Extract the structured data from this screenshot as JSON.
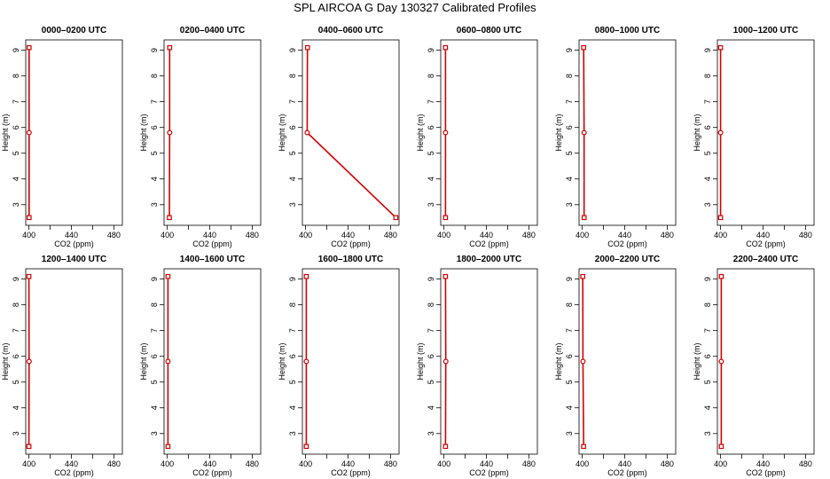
{
  "title": "SPL AIRCOA G  Day 130327  Calibrated Profiles",
  "colors": {
    "profile": "#d40000",
    "axis": "#000000"
  },
  "chart_data": [
    {
      "type": "line",
      "title": "0000–0200 UTC",
      "xlabel": "CO2 (ppm)",
      "ylabel": "Height (m)",
      "xlim": [
        397,
        488
      ],
      "ylim": [
        2.2,
        9.4
      ],
      "x_ticks": [
        400,
        420,
        440,
        460,
        480
      ],
      "x_tick_labels": [
        "400",
        "",
        "440",
        "",
        "480"
      ],
      "y_ticks": [
        3,
        4,
        5,
        6,
        7,
        8,
        9
      ],
      "grid": false,
      "series": [
        {
          "x": [
            400.2,
            400.2,
            400.2
          ],
          "y": [
            2.5,
            5.8,
            9.1
          ]
        }
      ]
    },
    {
      "type": "line",
      "title": "0200–0400 UTC",
      "xlabel": "CO2 (ppm)",
      "ylabel": "Height (m)",
      "xlim": [
        397,
        488
      ],
      "ylim": [
        2.2,
        9.4
      ],
      "x_ticks": [
        400,
        420,
        440,
        460,
        480
      ],
      "x_tick_labels": [
        "400",
        "",
        "440",
        "",
        "480"
      ],
      "y_ticks": [
        3,
        4,
        5,
        6,
        7,
        8,
        9
      ],
      "grid": false,
      "series": [
        {
          "x": [
            402.0,
            402.3,
            402.3
          ],
          "y": [
            2.5,
            5.8,
            9.1
          ]
        }
      ]
    },
    {
      "type": "line",
      "title": "0400–0600 UTC",
      "xlabel": "CO2 (ppm)",
      "ylabel": "Height (m)",
      "xlim": [
        397,
        488
      ],
      "ylim": [
        2.2,
        9.4
      ],
      "x_ticks": [
        400,
        420,
        440,
        460,
        480
      ],
      "x_tick_labels": [
        "400",
        "",
        "440",
        "",
        "480"
      ],
      "y_ticks": [
        3,
        4,
        5,
        6,
        7,
        8,
        9
      ],
      "grid": false,
      "series": [
        {
          "x": [
            485.0,
            401.5,
            401.8
          ],
          "y": [
            2.5,
            5.8,
            9.1
          ]
        }
      ]
    },
    {
      "type": "line",
      "title": "0600–0800 UTC",
      "xlabel": "CO2 (ppm)",
      "ylabel": "Height (m)",
      "xlim": [
        397,
        488
      ],
      "ylim": [
        2.2,
        9.4
      ],
      "x_ticks": [
        400,
        420,
        440,
        460,
        480
      ],
      "x_tick_labels": [
        "400",
        "",
        "440",
        "",
        "480"
      ],
      "y_ticks": [
        3,
        4,
        5,
        6,
        7,
        8,
        9
      ],
      "grid": false,
      "series": [
        {
          "x": [
            401.5,
            401.5,
            401.5
          ],
          "y": [
            2.5,
            5.8,
            9.1
          ]
        }
      ]
    },
    {
      "type": "line",
      "title": "0800–1000 UTC",
      "xlabel": "CO2 (ppm)",
      "ylabel": "Height (m)",
      "xlim": [
        397,
        488
      ],
      "ylim": [
        2.2,
        9.4
      ],
      "x_ticks": [
        400,
        420,
        440,
        460,
        480
      ],
      "x_tick_labels": [
        "400",
        "",
        "440",
        "",
        "480"
      ],
      "y_ticks": [
        3,
        4,
        5,
        6,
        7,
        8,
        9
      ],
      "grid": false,
      "series": [
        {
          "x": [
            401.8,
            401.8,
            401.3
          ],
          "y": [
            2.5,
            5.8,
            9.1
          ]
        }
      ]
    },
    {
      "type": "line",
      "title": "1000–1200 UTC",
      "xlabel": "CO2 (ppm)",
      "ylabel": "Height (m)",
      "xlim": [
        397,
        488
      ],
      "ylim": [
        2.2,
        9.4
      ],
      "x_ticks": [
        400,
        420,
        440,
        460,
        480
      ],
      "x_tick_labels": [
        "400",
        "",
        "440",
        "",
        "480"
      ],
      "y_ticks": [
        3,
        4,
        5,
        6,
        7,
        8,
        9
      ],
      "grid": false,
      "series": [
        {
          "x": [
            400.0,
            400.0,
            400.0
          ],
          "y": [
            2.5,
            5.8,
            9.1
          ]
        }
      ]
    },
    {
      "type": "line",
      "title": "1200–1400 UTC",
      "xlabel": "CO2 (ppm)",
      "ylabel": "Height (m)",
      "xlim": [
        397,
        488
      ],
      "ylim": [
        2.2,
        9.4
      ],
      "x_ticks": [
        400,
        420,
        440,
        460,
        480
      ],
      "x_tick_labels": [
        "400",
        "",
        "440",
        "",
        "480"
      ],
      "y_ticks": [
        3,
        4,
        5,
        6,
        7,
        8,
        9
      ],
      "grid": false,
      "series": [
        {
          "x": [
            400.0,
            400.2,
            400.0
          ],
          "y": [
            2.5,
            5.8,
            9.1
          ]
        }
      ]
    },
    {
      "type": "line",
      "title": "1400–1600 UTC",
      "xlabel": "CO2 (ppm)",
      "ylabel": "Height (m)",
      "xlim": [
        397,
        488
      ],
      "ylim": [
        2.2,
        9.4
      ],
      "x_ticks": [
        400,
        420,
        440,
        460,
        480
      ],
      "x_tick_labels": [
        "400",
        "",
        "440",
        "",
        "480"
      ],
      "y_ticks": [
        3,
        4,
        5,
        6,
        7,
        8,
        9
      ],
      "grid": false,
      "series": [
        {
          "x": [
            400.7,
            400.7,
            400.7
          ],
          "y": [
            2.5,
            5.8,
            9.1
          ]
        }
      ]
    },
    {
      "type": "line",
      "title": "1600–1800 UTC",
      "xlabel": "CO2 (ppm)",
      "ylabel": "Height (m)",
      "xlim": [
        397,
        488
      ],
      "ylim": [
        2.2,
        9.4
      ],
      "x_ticks": [
        400,
        420,
        440,
        460,
        480
      ],
      "x_tick_labels": [
        "400",
        "",
        "440",
        "",
        "480"
      ],
      "y_ticks": [
        3,
        4,
        5,
        6,
        7,
        8,
        9
      ],
      "grid": false,
      "series": [
        {
          "x": [
            400.7,
            400.7,
            400.7
          ],
          "y": [
            2.5,
            5.8,
            9.1
          ]
        }
      ]
    },
    {
      "type": "line",
      "title": "1800–2000 UTC",
      "xlabel": "CO2 (ppm)",
      "ylabel": "Height (m)",
      "xlim": [
        397,
        488
      ],
      "ylim": [
        2.2,
        9.4
      ],
      "x_ticks": [
        400,
        420,
        440,
        460,
        480
      ],
      "x_tick_labels": [
        "400",
        "",
        "440",
        "",
        "480"
      ],
      "y_ticks": [
        3,
        4,
        5,
        6,
        7,
        8,
        9
      ],
      "grid": false,
      "series": [
        {
          "x": [
            401.5,
            401.8,
            401.5
          ],
          "y": [
            2.5,
            5.8,
            9.1
          ]
        }
      ]
    },
    {
      "type": "line",
      "title": "2000–2200 UTC",
      "xlabel": "CO2 (ppm)",
      "ylabel": "Height (m)",
      "xlim": [
        397,
        488
      ],
      "ylim": [
        2.2,
        9.4
      ],
      "x_ticks": [
        400,
        420,
        440,
        460,
        480
      ],
      "x_tick_labels": [
        "400",
        "",
        "440",
        "",
        "480"
      ],
      "y_ticks": [
        3,
        4,
        5,
        6,
        7,
        8,
        9
      ],
      "grid": false,
      "series": [
        {
          "x": [
            401.3,
            400.7,
            400.5
          ],
          "y": [
            2.5,
            5.8,
            9.1
          ]
        }
      ]
    },
    {
      "type": "line",
      "title": "2200–2400 UTC",
      "xlabel": "CO2 (ppm)",
      "ylabel": "Height (m)",
      "xlim": [
        397,
        488
      ],
      "ylim": [
        2.2,
        9.4
      ],
      "x_ticks": [
        400,
        420,
        440,
        460,
        480
      ],
      "x_tick_labels": [
        "400",
        "",
        "440",
        "",
        "480"
      ],
      "y_ticks": [
        3,
        4,
        5,
        6,
        7,
        8,
        9
      ],
      "grid": false,
      "series": [
        {
          "x": [
            400.7,
            400.7,
            400.7
          ],
          "y": [
            2.5,
            5.8,
            9.1
          ]
        }
      ]
    }
  ]
}
